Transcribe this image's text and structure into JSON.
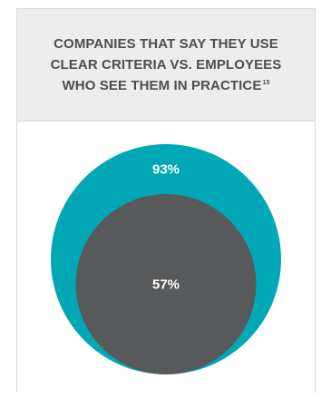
{
  "header": {
    "title_lines": [
      "COMPANIES THAT SAY THEY USE",
      "CLEAR CRITERIA VS. EMPLOYEES",
      "WHO SEE THEM IN PRACTICE"
    ],
    "footnote": "15"
  },
  "colors": {
    "outer": "#00a8b5",
    "inner": "#58595b",
    "label": "#ffffff"
  },
  "chart_data": {
    "type": "nested-circles",
    "title": "COMPANIES THAT SAY THEY USE CLEAR CRITERIA VS. EMPLOYEES WHO SEE THEM IN PRACTICE",
    "series": [
      {
        "value": 93,
        "label": "93%"
      },
      {
        "value": 57,
        "label": "57%"
      }
    ]
  }
}
